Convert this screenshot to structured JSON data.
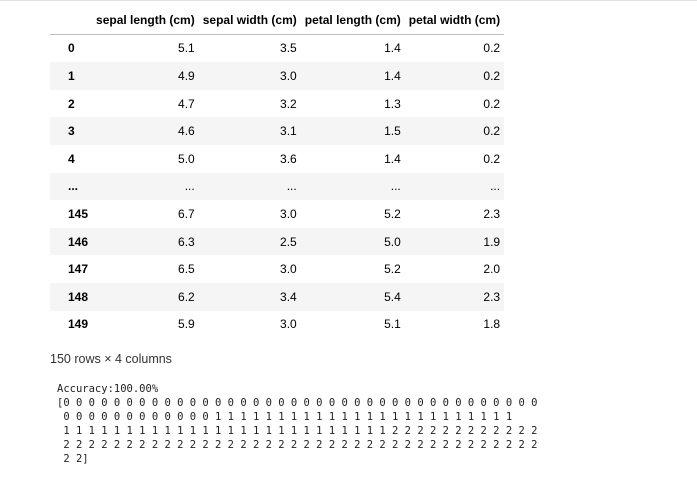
{
  "dataframe": {
    "columns": [
      "sepal length (cm)",
      "sepal width (cm)",
      "petal length (cm)",
      "petal width (cm)"
    ],
    "rows": [
      {
        "index": "0",
        "values": [
          "5.1",
          "3.5",
          "1.4",
          "0.2"
        ]
      },
      {
        "index": "1",
        "values": [
          "4.9",
          "3.0",
          "1.4",
          "0.2"
        ]
      },
      {
        "index": "2",
        "values": [
          "4.7",
          "3.2",
          "1.3",
          "0.2"
        ]
      },
      {
        "index": "3",
        "values": [
          "4.6",
          "3.1",
          "1.5",
          "0.2"
        ]
      },
      {
        "index": "4",
        "values": [
          "5.0",
          "3.6",
          "1.4",
          "0.2"
        ]
      },
      {
        "index": "...",
        "values": [
          "...",
          "...",
          "...",
          "..."
        ]
      },
      {
        "index": "145",
        "values": [
          "6.7",
          "3.0",
          "5.2",
          "2.3"
        ]
      },
      {
        "index": "146",
        "values": [
          "6.3",
          "2.5",
          "5.0",
          "1.9"
        ]
      },
      {
        "index": "147",
        "values": [
          "6.5",
          "3.0",
          "5.2",
          "2.0"
        ]
      },
      {
        "index": "148",
        "values": [
          "6.2",
          "3.4",
          "5.4",
          "2.3"
        ]
      },
      {
        "index": "149",
        "values": [
          "5.9",
          "3.0",
          "5.1",
          "1.8"
        ]
      }
    ],
    "shape_note": "150 rows × 4 columns"
  },
  "output": {
    "accuracy_line": "Accuracy:100.00%",
    "prediction_lines": [
      "[0 0 0 0 0 0 0 0 0 0 0 0 0 0 0 0 0 0 0 0 0 0 0 0 0 0 0 0 0 0 0 0 0 0 0 0 0 0",
      " 0 0 0 0 0 0 0 0 0 0 0 0 1 1 1 1 1 1 1 1 1 1 1 1 1 1 1 1 1 1 1 1 1 1 1 1",
      " 1 1 1 1 1 1 1 1 1 1 1 1 1 1 1 1 1 1 1 1 1 1 1 1 1 1 2 2 2 2 2 2 2 2 2 2 2 2",
      " 2 2 2 2 2 2 2 2 2 2 2 2 2 2 2 2 2 2 2 2 2 2 2 2 2 2 2 2 2 2 2 2 2 2 2 2 2 2",
      " 2 2]"
    ]
  }
}
